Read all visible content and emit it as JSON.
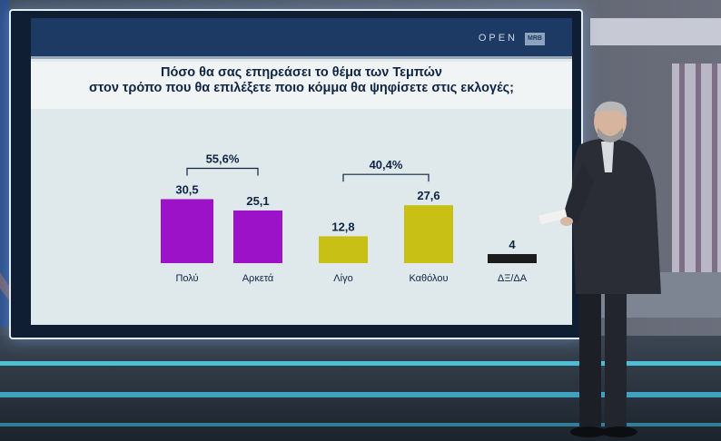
{
  "chart_data": {
    "type": "bar",
    "title_lines": [
      "Πόσο θα σας επηρεάσει το θέμα των Τεμπών",
      "στον τρόπο που θα επιλέξετε ποιο κόμμα θα ψηφίσετε στις εκλογές;"
    ],
    "categories": [
      "Πολύ",
      "Αρκετά",
      "Λίγο",
      "Καθόλου",
      "ΔΞ/ΔΑ"
    ],
    "values": [
      30.5,
      25.1,
      12.8,
      27.6,
      4
    ],
    "value_labels": [
      "30,5",
      "25,1",
      "12,8",
      "27,6",
      "4"
    ],
    "ylim": [
      0,
      32
    ],
    "colors": [
      "#9b12c8",
      "#9b12c8",
      "#c9c016",
      "#c9c016",
      "#1c1c1c"
    ],
    "groups": [
      {
        "label": "55,6%",
        "from": 0,
        "to": 1
      },
      {
        "label": "40,4%",
        "from": 2,
        "to": 3
      }
    ],
    "grid": false,
    "legend": "none"
  },
  "branding": {
    "channel": "OPEN",
    "pollster": "MRB"
  }
}
